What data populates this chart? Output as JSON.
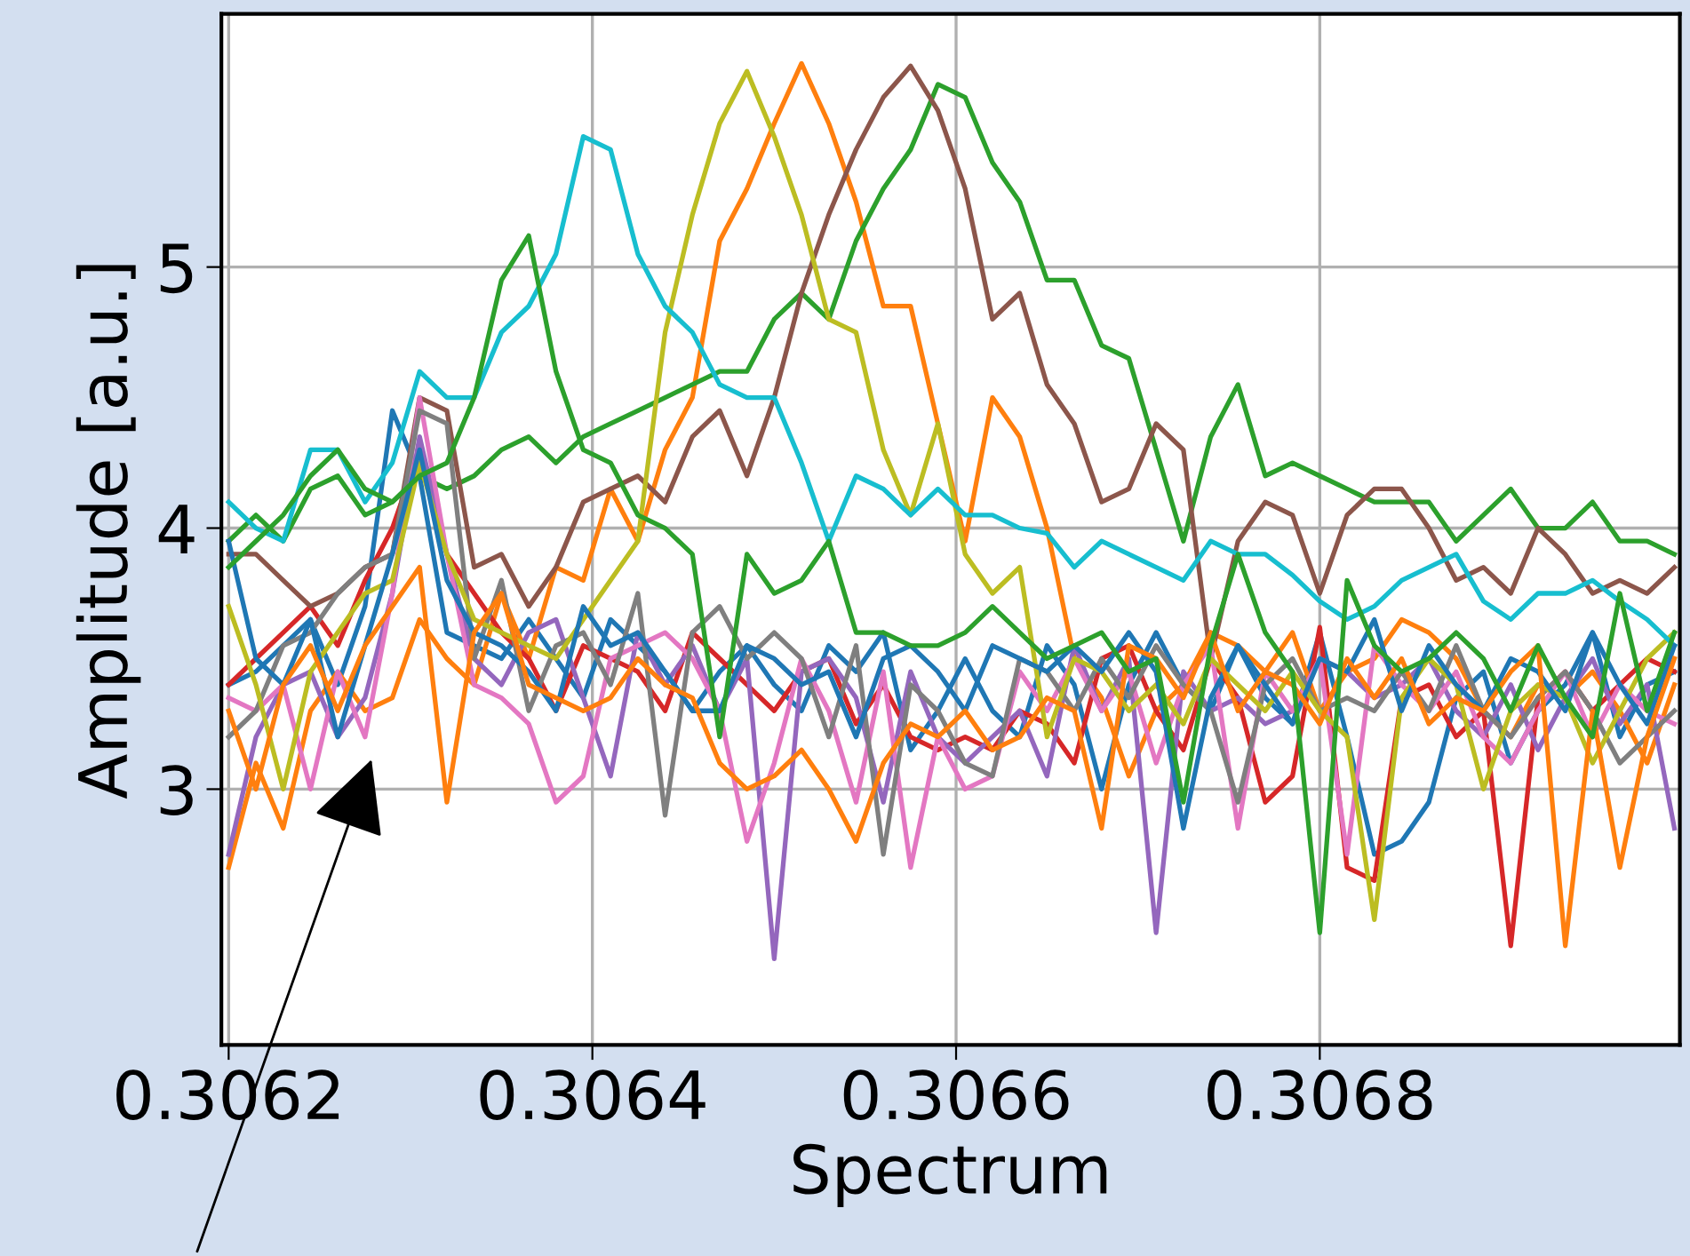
{
  "chart_data": {
    "type": "line",
    "xlabel": "Spectrum",
    "ylabel": "Amplitude [a.u.]",
    "x": [
      0.3062,
      0.306215,
      0.30623,
      0.306245,
      0.30626,
      0.306275,
      0.30629,
      0.306305,
      0.30632,
      0.306335,
      0.30635,
      0.306365,
      0.30638,
      0.306395,
      0.30641,
      0.306425,
      0.30644,
      0.306455,
      0.30647,
      0.306485,
      0.3065,
      0.306515,
      0.30653,
      0.306545,
      0.30656,
      0.306575,
      0.30659,
      0.306605,
      0.30662,
      0.306635,
      0.30665,
      0.306665,
      0.30668,
      0.306695,
      0.30671,
      0.306725,
      0.30674,
      0.306755,
      0.30677,
      0.306785,
      0.3068,
      0.306815,
      0.30683,
      0.306845,
      0.30686,
      0.306875,
      0.30689,
      0.306905,
      0.30692,
      0.306935,
      0.30695,
      0.306965,
      0.30698,
      0.306995
    ],
    "xlim": [
      0.306196,
      0.306998
    ],
    "ylim": [
      2.02,
      5.97
    ],
    "xticks": [
      0.3062,
      0.3064,
      0.3066,
      0.3068
    ],
    "yticks": [
      3,
      4,
      5
    ],
    "grid": true,
    "line_style": "solid",
    "marker": "none",
    "series": [
      {
        "color": "#1f77b4",
        "values": [
          3.4,
          3.45,
          3.55,
          3.65,
          3.4,
          3.7,
          4.45,
          4.2,
          3.6,
          3.55,
          3.5,
          3.65,
          3.5,
          3.35,
          3.65,
          3.55,
          3.45,
          3.3,
          3.45,
          3.55,
          3.4,
          3.3,
          3.55,
          3.45,
          3.6,
          3.15,
          3.3,
          3.5,
          3.3,
          3.2,
          3.55,
          3.4,
          3.0,
          3.4,
          3.6,
          3.4,
          3.3,
          3.55,
          3.35,
          3.25,
          3.6,
          3.2,
          2.75,
          2.8,
          2.95,
          3.35,
          3.45,
          3.1,
          3.3,
          3.4,
          3.6,
          3.2,
          3.4,
          3.45
        ]
      },
      {
        "color": "#ff7f0e",
        "values": [
          2.7,
          3.1,
          2.85,
          3.3,
          3.45,
          3.3,
          3.35,
          3.65,
          3.5,
          3.4,
          3.75,
          3.5,
          3.85,
          3.8,
          4.15,
          3.95,
          4.3,
          4.5,
          5.1,
          5.3,
          5.55,
          5.78,
          5.55,
          5.25,
          4.85,
          4.85,
          4.4,
          3.95,
          4.5,
          4.35,
          4.0,
          3.5,
          3.35,
          3.05,
          3.3,
          3.4,
          3.6,
          3.55,
          3.45,
          3.6,
          3.3,
          3.45,
          3.5,
          3.65,
          3.6,
          3.5,
          3.3,
          3.2,
          3.4,
          3.35,
          3.45,
          3.3,
          3.1,
          3.4
        ]
      },
      {
        "color": "#2ca02c",
        "values": [
          3.95,
          4.05,
          3.95,
          4.15,
          4.2,
          4.05,
          4.1,
          4.2,
          4.15,
          4.2,
          4.3,
          4.35,
          4.25,
          4.35,
          4.4,
          4.45,
          4.5,
          4.55,
          4.6,
          4.6,
          4.8,
          4.9,
          4.8,
          5.1,
          5.3,
          5.45,
          5.7,
          5.65,
          5.4,
          5.25,
          4.95,
          4.95,
          4.7,
          4.65,
          4.3,
          3.95,
          4.35,
          4.55,
          4.2,
          4.25,
          4.2,
          4.15,
          4.1,
          4.1,
          4.1,
          3.95,
          4.05,
          4.15,
          4.0,
          4.0,
          4.1,
          3.95,
          3.95,
          3.9
        ]
      },
      {
        "color": "#d62728",
        "values": [
          3.4,
          3.5,
          3.6,
          3.7,
          3.55,
          3.8,
          4.0,
          4.3,
          3.9,
          3.75,
          3.6,
          3.5,
          3.3,
          3.55,
          3.5,
          3.45,
          3.3,
          3.6,
          3.5,
          3.4,
          3.3,
          3.45,
          3.5,
          3.25,
          3.4,
          3.2,
          3.15,
          3.2,
          3.15,
          3.3,
          3.25,
          3.1,
          3.5,
          3.55,
          3.3,
          3.15,
          3.5,
          3.35,
          2.95,
          3.05,
          3.62,
          2.7,
          2.65,
          3.35,
          3.4,
          3.2,
          3.3,
          2.4,
          3.35,
          3.45,
          3.3,
          3.4,
          3.5,
          3.45
        ]
      },
      {
        "color": "#9467bd",
        "values": [
          2.75,
          3.2,
          3.4,
          3.45,
          3.2,
          3.35,
          3.75,
          4.35,
          3.9,
          3.5,
          3.4,
          3.6,
          3.65,
          3.35,
          3.05,
          3.6,
          3.4,
          3.55,
          3.3,
          3.5,
          2.35,
          3.45,
          3.5,
          3.35,
          2.95,
          3.45,
          3.2,
          3.1,
          3.2,
          3.3,
          3.05,
          3.55,
          3.3,
          3.5,
          2.45,
          3.45,
          3.3,
          3.35,
          3.25,
          3.3,
          3.5,
          3.45,
          3.35,
          3.4,
          3.5,
          3.3,
          3.2,
          3.4,
          3.15,
          3.35,
          3.5,
          3.25,
          3.4,
          2.85
        ]
      },
      {
        "color": "#8c564b",
        "values": [
          3.9,
          3.9,
          3.8,
          3.7,
          3.75,
          3.85,
          3.9,
          4.5,
          4.45,
          3.85,
          3.9,
          3.7,
          3.85,
          4.1,
          4.15,
          4.2,
          4.1,
          4.35,
          4.45,
          4.2,
          4.5,
          4.9,
          5.2,
          5.45,
          5.65,
          5.77,
          5.6,
          5.3,
          4.8,
          4.9,
          4.55,
          4.4,
          4.1,
          4.15,
          4.4,
          4.3,
          3.5,
          3.95,
          4.1,
          4.05,
          3.75,
          4.05,
          4.15,
          4.15,
          4.0,
          3.8,
          3.85,
          3.75,
          4.0,
          3.9,
          3.75,
          3.8,
          3.75,
          3.85
        ]
      },
      {
        "color": "#e377c2",
        "values": [
          3.35,
          3.3,
          3.4,
          3.0,
          3.45,
          3.2,
          3.75,
          4.5,
          3.9,
          3.4,
          3.35,
          3.25,
          2.95,
          3.05,
          3.5,
          3.55,
          3.6,
          3.5,
          3.3,
          2.8,
          3.1,
          3.5,
          3.3,
          2.95,
          3.45,
          2.7,
          3.2,
          3.0,
          3.05,
          3.45,
          3.3,
          3.5,
          3.3,
          3.45,
          3.1,
          3.4,
          3.55,
          2.85,
          3.45,
          3.3,
          3.5,
          2.75,
          3.55,
          3.4,
          3.3,
          3.45,
          3.2,
          3.1,
          3.3,
          3.45,
          3.2,
          3.4,
          3.3,
          3.25
        ]
      },
      {
        "color": "#7f7f7f",
        "values": [
          3.2,
          3.3,
          3.55,
          3.6,
          3.75,
          3.85,
          3.9,
          4.45,
          4.4,
          3.5,
          3.8,
          3.3,
          3.55,
          3.6,
          3.4,
          3.75,
          2.9,
          3.6,
          3.7,
          3.5,
          3.6,
          3.5,
          3.2,
          3.55,
          2.75,
          3.4,
          3.3,
          3.1,
          3.05,
          3.5,
          3.45,
          3.3,
          3.5,
          3.35,
          3.55,
          3.4,
          3.3,
          2.95,
          3.4,
          3.5,
          3.3,
          3.35,
          3.3,
          3.45,
          3.3,
          3.55,
          3.3,
          3.2,
          3.35,
          3.45,
          3.3,
          3.1,
          3.2,
          3.3
        ]
      },
      {
        "color": "#bcbd22",
        "values": [
          3.7,
          3.4,
          3.0,
          3.45,
          3.6,
          3.75,
          3.8,
          4.25,
          3.9,
          3.65,
          3.6,
          3.55,
          3.5,
          3.65,
          3.8,
          3.95,
          4.75,
          5.2,
          5.55,
          5.75,
          5.5,
          5.2,
          4.8,
          4.75,
          4.3,
          4.05,
          4.4,
          3.9,
          3.75,
          3.85,
          3.2,
          3.5,
          3.45,
          3.3,
          3.4,
          3.25,
          3.5,
          3.4,
          3.3,
          3.45,
          3.3,
          3.2,
          2.5,
          3.35,
          3.5,
          3.4,
          3.0,
          3.3,
          3.4,
          3.35,
          3.1,
          3.3,
          3.5,
          3.6
        ]
      },
      {
        "color": "#17becf",
        "values": [
          4.1,
          4.0,
          3.95,
          4.3,
          4.3,
          4.1,
          4.25,
          4.6,
          4.5,
          4.5,
          4.75,
          4.85,
          5.05,
          5.5,
          5.45,
          5.05,
          4.85,
          4.75,
          4.55,
          4.5,
          4.5,
          4.25,
          3.95,
          4.2,
          4.15,
          4.05,
          4.15,
          4.05,
          4.05,
          4.0,
          3.98,
          3.85,
          3.95,
          3.9,
          3.85,
          3.8,
          3.95,
          3.9,
          3.9,
          3.82,
          3.72,
          3.65,
          3.7,
          3.8,
          3.85,
          3.9,
          3.72,
          3.65,
          3.75,
          3.75,
          3.8,
          3.72,
          3.65,
          3.55
        ]
      },
      {
        "color": "#1f77b4",
        "values": [
          3.95,
          3.5,
          3.4,
          3.65,
          3.2,
          3.55,
          3.9,
          4.3,
          3.8,
          3.6,
          3.55,
          3.45,
          3.3,
          3.7,
          3.55,
          3.6,
          3.45,
          3.3,
          3.3,
          3.55,
          3.5,
          3.4,
          3.45,
          3.2,
          3.5,
          3.55,
          3.45,
          3.3,
          3.55,
          3.5,
          3.45,
          3.55,
          3.45,
          3.6,
          3.45,
          2.85,
          3.35,
          3.55,
          3.4,
          3.25,
          3.5,
          3.45,
          3.65,
          3.3,
          3.55,
          3.4,
          3.3,
          3.5,
          3.45,
          3.3,
          3.6,
          3.4,
          3.25,
          3.55
        ]
      },
      {
        "color": "#ff7f0e",
        "values": [
          3.3,
          3.0,
          3.4,
          3.55,
          3.3,
          3.55,
          3.7,
          3.85,
          2.95,
          3.6,
          3.75,
          3.4,
          3.35,
          3.3,
          3.35,
          3.5,
          3.4,
          3.35,
          3.1,
          3.0,
          3.05,
          3.15,
          3.0,
          2.8,
          3.1,
          3.25,
          3.2,
          3.3,
          3.15,
          3.2,
          3.35,
          3.3,
          2.85,
          3.55,
          3.5,
          3.35,
          3.6,
          3.3,
          3.45,
          3.4,
          3.25,
          3.5,
          3.35,
          3.5,
          3.25,
          3.35,
          3.3,
          3.45,
          3.55,
          2.4,
          3.3,
          2.7,
          3.2,
          3.5
        ]
      },
      {
        "color": "#2ca02c",
        "values": [
          3.85,
          3.95,
          4.05,
          4.2,
          4.3,
          4.15,
          4.1,
          4.2,
          4.25,
          4.5,
          4.95,
          5.12,
          4.6,
          4.3,
          4.25,
          4.05,
          4.0,
          3.9,
          3.2,
          3.9,
          3.75,
          3.8,
          3.95,
          3.6,
          3.6,
          3.55,
          3.55,
          3.6,
          3.7,
          3.6,
          3.5,
          3.55,
          3.6,
          3.45,
          3.5,
          2.95,
          3.55,
          3.9,
          3.6,
          3.45,
          2.45,
          3.8,
          3.55,
          3.45,
          3.5,
          3.6,
          3.5,
          3.3,
          3.55,
          3.35,
          3.2,
          3.75,
          3.3,
          3.6
        ]
      }
    ]
  }
}
